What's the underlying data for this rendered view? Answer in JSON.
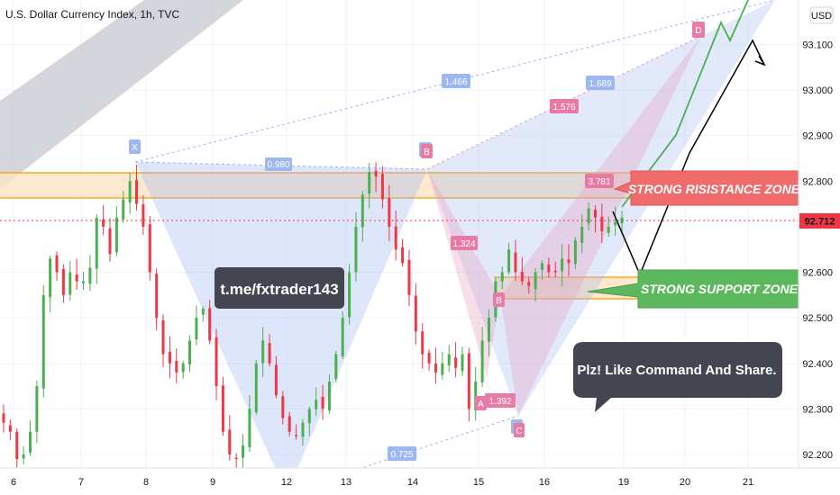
{
  "header": {
    "title": "U.S. Dollar Currency Index, 1h, TVC"
  },
  "currency_button": "USD",
  "current_price": "92.712",
  "colors": {
    "up": "#26a69a",
    "down": "#ef5350",
    "bull_candle": "#4caf50",
    "bear_candle": "#f23645",
    "resistance_fill": "#fde3c4",
    "support_fill": "#fde3c4",
    "pattern_blue": "#9db7f0",
    "pattern_pink": "#e8a0c0",
    "zone_line": "#ff9800",
    "callout_dark": "#434651",
    "resistance_box": "#f06b6b",
    "support_box": "#5cb85c",
    "price_tag": "#f23645"
  },
  "annotations": {
    "telegram": "t.me/fxtrader143",
    "like": "Plz! Like Command And Share.",
    "resistance": "STRONG RISISTANCE ZONE",
    "support": "STRONG SUPPORT ZONE"
  },
  "pattern_points": {
    "x": "X",
    "a1": "A",
    "b1": "B",
    "a2": "A",
    "b2": "B",
    "c": "C",
    "d": "D"
  },
  "pattern_ratios": {
    "r1": "0.980",
    "r2": "0.725",
    "r3": "1.324",
    "r4": "1.392",
    "r5": "1.576",
    "r6": "1.466",
    "r7": "1.689",
    "r8": "3.781"
  },
  "chart_data": {
    "type": "candlestick",
    "title": "U.S. Dollar Currency Index, 1h, TVC",
    "x_tick_labels": [
      "6",
      "7",
      "8",
      "9",
      "12",
      "13",
      "14",
      "15",
      "16",
      "19",
      "20",
      "21"
    ],
    "y_tick_labels": [
      "93.100",
      "93.000",
      "92.900",
      "92.800",
      "92.600",
      "92.500",
      "92.400",
      "92.300",
      "92.200"
    ],
    "ylim": [
      92.16,
      93.2
    ],
    "resistance_zone": [
      92.76,
      92.82
    ],
    "support_zone": [
      92.54,
      92.59
    ],
    "current_price": 92.712,
    "closes": [
      92.27,
      92.25,
      92.19,
      92.2,
      92.25,
      92.35,
      92.55,
      92.63,
      92.6,
      92.55,
      92.6,
      92.58,
      92.58,
      92.61,
      92.72,
      92.7,
      92.64,
      92.72,
      92.76,
      92.8,
      92.75,
      92.7,
      92.6,
      92.5,
      92.42,
      92.4,
      92.38,
      92.4,
      92.45,
      92.5,
      92.52,
      92.45,
      92.35,
      92.25,
      92.2,
      92.19,
      92.22,
      92.3,
      92.4,
      92.45,
      92.4,
      92.33,
      92.28,
      92.25,
      92.24,
      92.27,
      92.3,
      92.32,
      92.3,
      92.36,
      92.42,
      92.5,
      92.6,
      92.7,
      92.77,
      92.82,
      92.81,
      92.76,
      92.7,
      92.65,
      92.62,
      92.55,
      92.47,
      92.42,
      92.4,
      92.38,
      92.4,
      92.42,
      92.39,
      92.42,
      92.3,
      92.36,
      92.45,
      92.5,
      92.58,
      92.6,
      92.65,
      92.6,
      92.58,
      92.57,
      92.6,
      92.62,
      92.6,
      92.6,
      92.63,
      92.62,
      92.67,
      92.7,
      92.74,
      92.72,
      92.69,
      92.7,
      92.71,
      92.72
    ]
  }
}
